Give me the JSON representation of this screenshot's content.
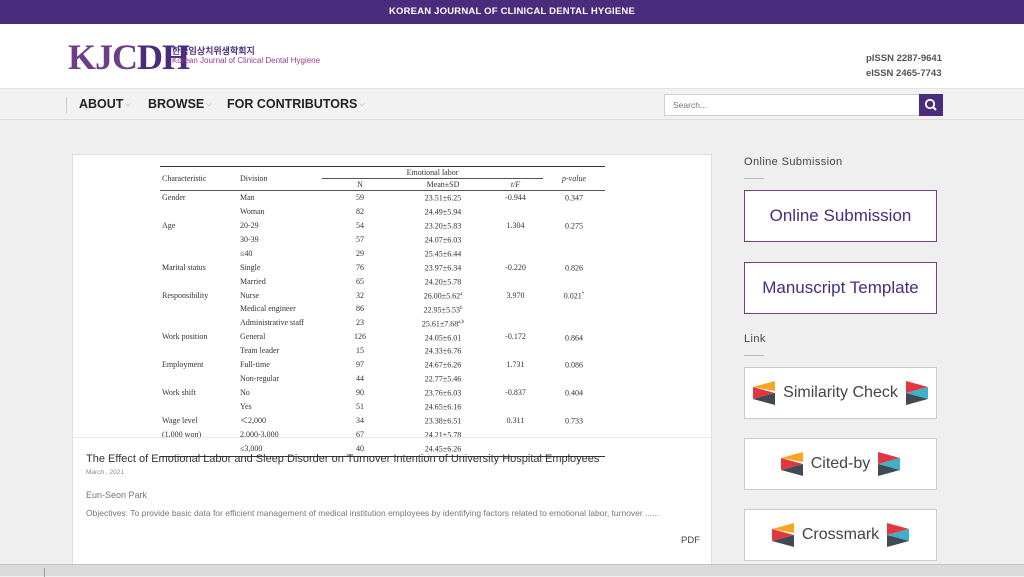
{
  "topbar": {
    "title": "KOREAN JOURNAL OF CLINICAL DENTAL HYGIENE"
  },
  "header": {
    "logo_kj": "KJC",
    "logo_dh": "DH",
    "logo_korean": "한국임상치위생학회지",
    "logo_english": "Korean Journal of Clinical Dental Hygiene",
    "pissn": "pISSN 2287-9641",
    "eissn": "eISSN 2465-7743"
  },
  "nav": {
    "items": [
      {
        "label": "ABOUT"
      },
      {
        "label": "BROWSE"
      },
      {
        "label": "FOR CONTRIBUTORS"
      }
    ],
    "search_placeholder": "Search..."
  },
  "table": {
    "headers": {
      "characteristic": "Characteristic",
      "division": "Division",
      "group": "Emotional labor",
      "n": "N",
      "mean_sd": "Mean±SD",
      "tf": "t/F",
      "p": "p-value"
    },
    "rows": [
      {
        "char": "Gender",
        "div": "Man",
        "n": "59",
        "mean": "23.51±6.25",
        "sup": "",
        "tf": "-0.944",
        "p": "0.347",
        "psup": ""
      },
      {
        "char": "",
        "div": "Woman",
        "n": "82",
        "mean": "24.49±5.94",
        "sup": "",
        "tf": "",
        "p": "",
        "psup": ""
      },
      {
        "char": "Age",
        "div": "20-29",
        "n": "54",
        "mean": "23.20±5.83",
        "sup": "",
        "tf": "1.304",
        "p": "0.275",
        "psup": ""
      },
      {
        "char": "",
        "div": "30-39",
        "n": "57",
        "mean": "24.07±6.03",
        "sup": "",
        "tf": "",
        "p": "",
        "psup": ""
      },
      {
        "char": "",
        "div": "≤40",
        "n": "29",
        "mean": "25.45±6.44",
        "sup": "",
        "tf": "",
        "p": "",
        "psup": ""
      },
      {
        "char": "Marital status",
        "div": "Single",
        "n": "76",
        "mean": "23.97±6.34",
        "sup": "",
        "tf": "-0.220",
        "p": "0.826",
        "psup": ""
      },
      {
        "char": "",
        "div": "Married",
        "n": "65",
        "mean": "24.20±5.78",
        "sup": "",
        "tf": "",
        "p": "",
        "psup": ""
      },
      {
        "char": "Responsibility",
        "div": "Nurse",
        "n": "32",
        "mean": "26.00±5.62",
        "sup": "a",
        "tf": "3.970",
        "p": "0.021",
        "psup": "*"
      },
      {
        "char": "",
        "div": "Medical engineer",
        "n": "86",
        "mean": "22.95±5.53",
        "sup": "b",
        "tf": "",
        "p": "",
        "psup": ""
      },
      {
        "char": "",
        "div": "Administrative staff",
        "n": "23",
        "mean": "25.61±7.68",
        "sup": "a,b",
        "tf": "",
        "p": "",
        "psup": ""
      },
      {
        "char": "Work position",
        "div": "General",
        "n": "126",
        "mean": "24.05±6.01",
        "sup": "",
        "tf": "-0.172",
        "p": "0.864",
        "psup": ""
      },
      {
        "char": "",
        "div": "Team leader",
        "n": "15",
        "mean": "24.33±6.76",
        "sup": "",
        "tf": "",
        "p": "",
        "psup": ""
      },
      {
        "char": "Employment",
        "div": "Full-time",
        "n": "97",
        "mean": "24.67±6.26",
        "sup": "",
        "tf": "1.731",
        "p": "0.086",
        "psup": ""
      },
      {
        "char": "",
        "div": "Non-regular",
        "n": "44",
        "mean": "22.77±5.46",
        "sup": "",
        "tf": "",
        "p": "",
        "psup": ""
      },
      {
        "char": "Work shift",
        "div": "No",
        "n": "90",
        "mean": "23.76±6.03",
        "sup": "",
        "tf": "-0.837",
        "p": "0.404",
        "psup": ""
      },
      {
        "char": "",
        "div": "Yes",
        "n": "51",
        "mean": "24.65±6.16",
        "sup": "",
        "tf": "",
        "p": "",
        "psup": ""
      },
      {
        "char": "Wage level",
        "div": "＜2,000",
        "n": "34",
        "mean": "23.38±6.51",
        "sup": "",
        "tf": "0.311",
        "p": "0.733",
        "psup": ""
      },
      {
        "char": "(1,000 won)",
        "div": "2,000-3,000",
        "n": "67",
        "mean": "24.21±5.78",
        "sup": "",
        "tf": "",
        "p": "",
        "psup": ""
      },
      {
        "char": "",
        "div": "≤3,000",
        "n": "40",
        "mean": "24.45±6.26",
        "sup": "",
        "tf": "",
        "p": "",
        "psup": ""
      }
    ]
  },
  "article": {
    "title": "The Effect of Emotional Labor and Sleep Disorder on Turnover Intention of University Hospital Employees",
    "date": "March , 2021",
    "author": "Eun-Seon Park",
    "abstract": "Objectives: To provide basic data for efficient management of medical institution employees by identifying factors related to emotional labor, turnover ......",
    "pdf": "PDF"
  },
  "sidebar": {
    "online_heading": "Online Submission",
    "online_button": "Online Submission",
    "template_button": "Manuscript Template",
    "link_heading": "Link",
    "similarity": "Similarity Check",
    "citedby": "Cited-by",
    "crossmark": "Crossmark"
  },
  "colors": {
    "brand": "#4a2c7d",
    "accent": "#7b3a8a"
  }
}
